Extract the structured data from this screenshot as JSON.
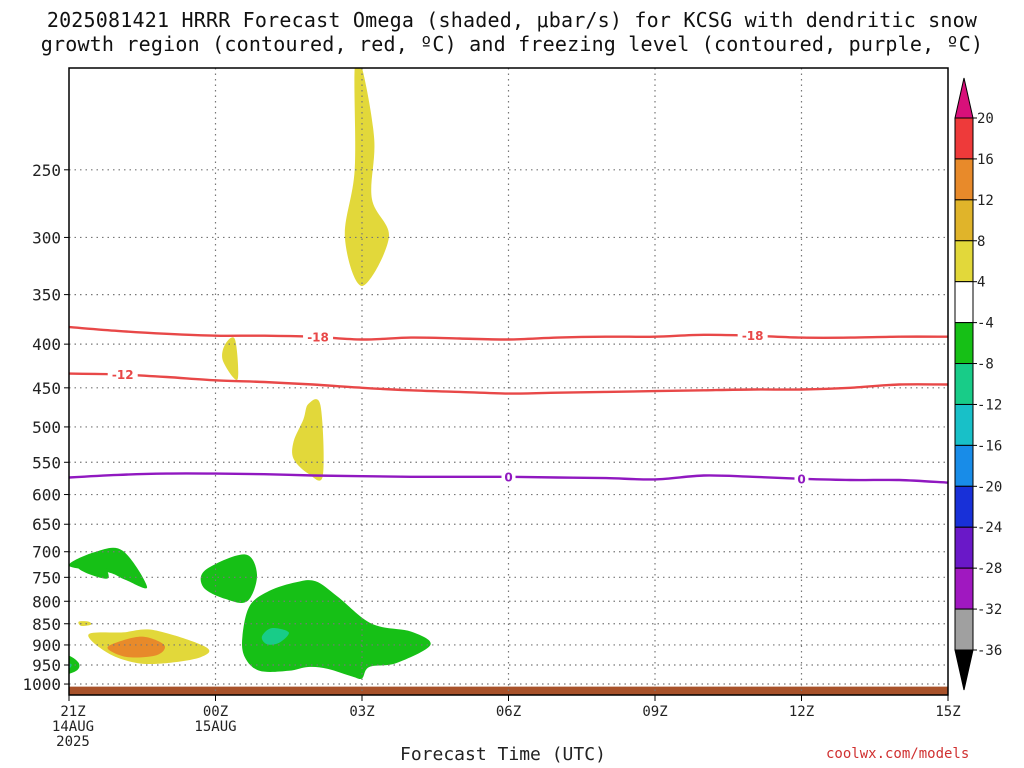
{
  "title": {
    "line1": "2025081421 HRRR Forecast Omega (shaded, μbar/s) for KCSG with dendritic snow",
    "line2": "growth region (contoured, red, ºC) and freezing level (contoured, purple, ºC)"
  },
  "credit": "coolwx.com/models",
  "chart_data": {
    "type": "heatmap",
    "title": "2025081421 HRRR Forecast Omega (shaded, μbar/s) for KCSG with dendritic snow growth region (contoured, red, ºC) and freezing level (contoured, purple, ºC)",
    "xlabel": "Forecast Time (UTC)",
    "ylabel": "",
    "x_hours": [
      0,
      3,
      6,
      9,
      12,
      15,
      18
    ],
    "x_tick_labels": [
      [
        "21Z",
        "14AUG",
        "2025"
      ],
      [
        "00Z",
        "15AUG"
      ],
      [
        "03Z"
      ],
      [
        "06Z"
      ],
      [
        "09Z"
      ],
      [
        "12Z"
      ],
      [
        "15Z"
      ]
    ],
    "xlim": [
      0,
      18
    ],
    "y_pressure_ticks": [
      250,
      300,
      350,
      400,
      450,
      500,
      550,
      600,
      650,
      700,
      750,
      800,
      850,
      900,
      950,
      1000
    ],
    "ylim": [
      1030,
      190
    ],
    "y_scale": "log-pressure",
    "grid": true,
    "colorbar": {
      "labels": [
        "20",
        "16",
        "12",
        "8",
        "4",
        "-4",
        "-8",
        "-12",
        "-16",
        "-20",
        "-24",
        "-28",
        "-32",
        "-36"
      ],
      "colors": [
        "#d8107a",
        "#ee3a3a",
        "#e88a2a",
        "#e0b42a",
        "#e2d83a",
        "#ffffff",
        "#16c016",
        "#18cc88",
        "#18c0c8",
        "#188ce8",
        "#1830d8",
        "#6a18c8",
        "#a018c0",
        "#a0a0a0",
        "#000000"
      ]
    },
    "omega_regions": [
      {
        "value": 6,
        "color": "#e2d83a",
        "points": [
          [
            6.0,
            190
          ],
          [
            6.25,
            230
          ],
          [
            6.2,
            270
          ],
          [
            6.55,
            300
          ],
          [
            6.0,
            342
          ],
          [
            5.65,
            300
          ],
          [
            5.85,
            250
          ],
          [
            5.85,
            190
          ]
        ]
      },
      {
        "value": 6,
        "color": "#e2d83a",
        "points": [
          [
            3.2,
            400
          ],
          [
            3.4,
            395
          ],
          [
            3.45,
            440
          ],
          [
            3.15,
            418
          ]
        ]
      },
      {
        "value": 6,
        "color": "#e2d83a",
        "points": [
          [
            4.9,
            470
          ],
          [
            5.15,
            472
          ],
          [
            5.2,
            570
          ],
          [
            4.9,
            567
          ],
          [
            4.6,
            545
          ],
          [
            4.6,
            520
          ],
          [
            4.8,
            490
          ]
        ]
      },
      {
        "value": 6,
        "color": "#e2d83a",
        "points": [
          [
            1.1,
            870
          ],
          [
            1.75,
            865
          ],
          [
            2.8,
            905
          ],
          [
            2.7,
            930
          ],
          [
            2.0,
            945
          ],
          [
            1.4,
            945
          ],
          [
            0.8,
            920
          ],
          [
            0.4,
            875
          ]
        ]
      },
      {
        "value": 10,
        "color": "#e88a2a",
        "points": [
          [
            0.95,
            895
          ],
          [
            1.5,
            880
          ],
          [
            1.95,
            900
          ],
          [
            1.8,
            925
          ],
          [
            1.2,
            930
          ],
          [
            0.8,
            910
          ]
        ]
      },
      {
        "value": 6,
        "color": "#e2d83a",
        "points": [
          [
            0.2,
            845
          ],
          [
            0.4,
            845
          ],
          [
            0.45,
            852
          ],
          [
            0.25,
            855
          ]
        ]
      },
      {
        "value": -6,
        "color": "#16c016",
        "points": [
          [
            0.0,
            727
          ],
          [
            0.55,
            700
          ],
          [
            1.1,
            698
          ],
          [
            1.6,
            770
          ],
          [
            1.15,
            755
          ],
          [
            0.8,
            740
          ]
        ]
      },
      {
        "value": -6,
        "color": "#16c016",
        "points": [
          [
            0.35,
            708
          ],
          [
            0.6,
            706
          ],
          [
            0.8,
            752
          ],
          [
            0.2,
            733
          ]
        ]
      },
      {
        "value": -6,
        "color": "#16c016",
        "points": [
          [
            2.8,
            735
          ],
          [
            3.6,
            705
          ],
          [
            3.85,
            745
          ],
          [
            3.65,
            800
          ],
          [
            3.2,
            795
          ],
          [
            2.75,
            770
          ]
        ]
      },
      {
        "value": -6,
        "color": "#16c016",
        "points": [
          [
            -0.45,
            930
          ],
          [
            -0.05,
            925
          ],
          [
            0.2,
            945
          ],
          [
            0.15,
            965
          ],
          [
            -0.15,
            975
          ],
          [
            -0.4,
            955
          ]
        ]
      },
      {
        "value": -10,
        "color": "#18cc88",
        "points": [
          [
            -0.2,
            945
          ],
          [
            0.05,
            948
          ],
          [
            -0.05,
            965
          ],
          [
            -0.2,
            958
          ]
        ]
      },
      {
        "value": -6,
        "color": "#16c016",
        "points": [
          [
            4.65,
            760
          ],
          [
            5.05,
            758
          ],
          [
            5.5,
            790
          ],
          [
            6.2,
            850
          ],
          [
            7.0,
            868
          ],
          [
            7.4,
            900
          ],
          [
            6.7,
            945
          ],
          [
            6.15,
            955
          ],
          [
            6.0,
            985
          ],
          [
            5.8,
            980
          ],
          [
            5.3,
            960
          ],
          [
            4.9,
            955
          ],
          [
            4.5,
            965
          ],
          [
            3.9,
            965
          ],
          [
            3.6,
            930
          ],
          [
            3.55,
            880
          ],
          [
            3.7,
            810
          ],
          [
            4.1,
            778
          ]
        ]
      },
      {
        "value": -10,
        "color": "#18cc88",
        "points": [
          [
            4.15,
            860
          ],
          [
            4.5,
            870
          ],
          [
            4.3,
            895
          ],
          [
            4.05,
            898
          ],
          [
            3.95,
            880
          ]
        ]
      }
    ],
    "contours": [
      {
        "name": "-18",
        "color": "#e84848",
        "x": [
          0,
          1,
          2,
          3,
          4,
          5,
          6,
          7,
          8,
          9,
          10,
          11,
          12,
          13,
          14,
          15,
          16,
          17,
          18
        ],
        "y": [
          382,
          386,
          389,
          391,
          391,
          392,
          395,
          393,
          394,
          395,
          393,
          392,
          392,
          390,
          391,
          393,
          393,
          392,
          392
        ],
        "label_x": [
          5.1,
          14.0
        ]
      },
      {
        "name": "-12",
        "color": "#e84848",
        "x": [
          0,
          1,
          2,
          3,
          4,
          5,
          6,
          7,
          8,
          9,
          10,
          11,
          12,
          13,
          14,
          15,
          16,
          17,
          18
        ],
        "y": [
          433,
          434,
          437,
          441,
          443,
          446,
          450,
          453,
          455,
          457,
          456,
          455,
          454,
          453,
          452,
          452,
          450,
          446,
          446
        ],
        "label_x": [
          1.1
        ]
      },
      {
        "name": "0",
        "color": "#9018c0",
        "x": [
          0,
          1,
          2,
          3,
          4,
          5,
          6,
          7,
          8,
          9,
          10,
          11,
          12,
          13,
          14,
          15,
          16,
          17,
          18
        ],
        "y": [
          573,
          569,
          567,
          567,
          568,
          570,
          571,
          572,
          572,
          572,
          573,
          574,
          576,
          570,
          572,
          575,
          577,
          577,
          581
        ],
        "label_x": [
          9.0,
          15.0
        ]
      }
    ],
    "ground": {
      "color": "#a8522a",
      "from_pressure": 1007,
      "to_pressure": 1030
    }
  }
}
